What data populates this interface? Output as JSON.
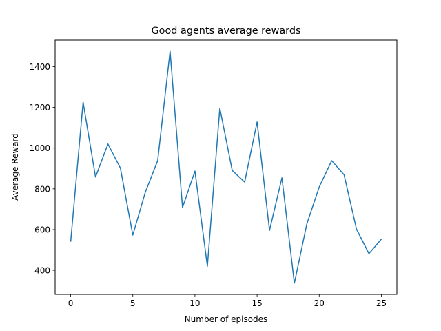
{
  "chart_data": {
    "type": "line",
    "title": "Good agents average rewards",
    "xlabel": "Number of episodes",
    "ylabel": "Average Reward",
    "xlim": [
      -1.25,
      26.25
    ],
    "ylim": [
      282,
      1530
    ],
    "xticks": [
      0,
      5,
      10,
      15,
      20,
      25
    ],
    "yticks": [
      400,
      600,
      800,
      1000,
      1200,
      1400
    ],
    "grid": false,
    "series": [
      {
        "color": "#1f77b4",
        "x": [
          0,
          1,
          2,
          3,
          4,
          5,
          6,
          7,
          8,
          9,
          10,
          11,
          12,
          13,
          14,
          15,
          16,
          17,
          18,
          19,
          20,
          21,
          22,
          23,
          24,
          25
        ],
        "y": [
          540,
          1225,
          858,
          1020,
          902,
          573,
          782,
          938,
          1475,
          708,
          887,
          420,
          1196,
          890,
          833,
          1128,
          596,
          854,
          337,
          627,
          809,
          938,
          869,
          602,
          482,
          553
        ]
      }
    ]
  }
}
